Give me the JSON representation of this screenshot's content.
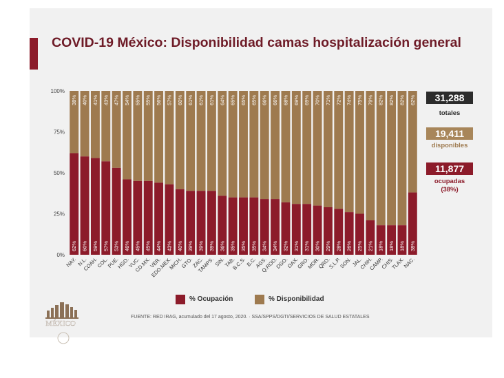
{
  "title": "COVID-19 México: Disponibilidad camas hospitalización general",
  "colors": {
    "ocupacion": "#8c1b2a",
    "disponibilidad": "#9e7a4f",
    "totales_badge": "#2c2c2c",
    "disponibles_badge": "#a8865a",
    "ocupadas_badge": "#8c1b2a",
    "accent": "#8c1b2a"
  },
  "summary": {
    "totales_value": "31,288",
    "totales_label": "totales",
    "disponibles_value": "19,411",
    "disponibles_label": "disponibles",
    "ocupadas_value": "11,877",
    "ocupadas_label": "ocupadas",
    "ocupadas_pct": "(38%)"
  },
  "legend": {
    "ocupacion": "% Ocupación",
    "disponibilidad": "% Disponibilidad"
  },
  "source": "FUENTE: RED IRAG, acumulado del 17 agosto, 2020.  ·  SSA/SPPS/DGTI/SERVICIOS DE SALUD ESTATALES",
  "logo_text": "MÉXICO",
  "chart_data": {
    "type": "bar",
    "stacked": true,
    "ylim": [
      0,
      100
    ],
    "yticks": [
      "0%",
      "25%",
      "50%",
      "75%",
      "100%"
    ],
    "ytick_values": [
      0,
      25,
      50,
      75,
      100
    ],
    "categories": [
      "NAY.",
      "N.L.",
      "COAH.",
      "COL.",
      "PUE.",
      "HGO.",
      "YUC.",
      "CD.MX.",
      "VER.",
      "EDO.MEX.",
      "MICH.",
      "GTO.",
      "ZAC.",
      "TAMPS.",
      "SIN.",
      "TAB.",
      "B.C.S.",
      "B.C.",
      "AGS.",
      "Q.ROO.",
      "DGO.",
      "OAX.",
      "GRO.",
      "MOR.",
      "QRO.",
      "S.L.P.",
      "SON.",
      "JAL.",
      "CHIH.",
      "CAMP.",
      "CHIS.",
      "TLAX.",
      "NAC."
    ],
    "series": [
      {
        "name": "% Ocupación",
        "values": [
          62,
          60,
          59,
          57,
          53,
          46,
          45,
          45,
          44,
          43,
          40,
          39,
          39,
          39,
          36,
          35,
          35,
          35,
          34,
          34,
          32,
          31,
          31,
          30,
          29,
          28,
          26,
          25,
          21,
          18,
          18,
          18,
          38
        ],
        "labels": [
          "62%",
          "60%",
          "59%",
          "57%",
          "53%",
          "46%",
          "45%",
          "45%",
          "44%",
          "43%",
          "40%",
          "39%",
          "39%",
          "39%",
          "36%",
          "35%",
          "35%",
          "35%",
          "34%",
          "34%",
          "32%",
          "31%",
          "31%",
          "30%",
          "29%",
          "28%",
          "26%",
          "25%",
          "21%",
          "18%",
          "18%",
          "18%",
          "38%"
        ]
      },
      {
        "name": "% Disponibilidad",
        "values": [
          38,
          40,
          41,
          43,
          47,
          54,
          55,
          55,
          56,
          57,
          60,
          61,
          61,
          61,
          64,
          65,
          65,
          65,
          66,
          66,
          68,
          69,
          69,
          70,
          71,
          72,
          74,
          75,
          79,
          82,
          82,
          82,
          62
        ],
        "labels": [
          "38%",
          "40%",
          "41%",
          "43%",
          "47%",
          "54%",
          "55%",
          "55%",
          "56%",
          "57%",
          "60%",
          "61%",
          "61%",
          "61%",
          "64%",
          "65%",
          "65%",
          "65%",
          "66%",
          "66%",
          "68%",
          "69%",
          "69%",
          "70%",
          "71%",
          "72%",
          "74%",
          "75%",
          "79%",
          "82%",
          "82%",
          "82%",
          "62%"
        ]
      }
    ]
  }
}
